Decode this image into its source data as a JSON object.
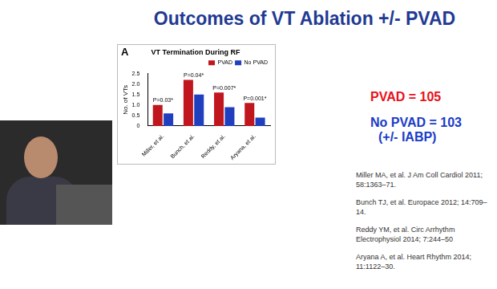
{
  "title": "Outcomes of VT Ablation +/- PVAD",
  "panel_label": "A",
  "chart_data": {
    "type": "bar",
    "title": "VT Termination During RF",
    "y_label": "No. of VTs",
    "categories": [
      "Miller, et al.",
      "Bunch, et al.",
      "Reddy, et al.",
      "Aryana, et al."
    ],
    "series": [
      {
        "name": "PVAD",
        "color": "#c0171e",
        "values": [
          1.0,
          2.2,
          1.6,
          1.1
        ]
      },
      {
        "name": "No PVAD",
        "color": "#1f3fbf",
        "values": [
          0.6,
          1.5,
          0.9,
          0.4
        ]
      }
    ],
    "ylim": [
      0,
      2.5
    ],
    "yticks": [
      0,
      0.5,
      {
        "value": 1,
        "label": "1.0"
      },
      1.5,
      {
        "value": 2,
        "label": "2.0"
      },
      2.5
    ],
    "legend": "upper right",
    "annotations": [
      {
        "category": "Miller, et al.",
        "text": "P=0.03*"
      },
      {
        "category": "Bunch, et al.",
        "text": "P=0.04*"
      },
      {
        "category": "Reddy, et al.",
        "text": "P=0.007*"
      },
      {
        "category": "Aryana, et al.",
        "text": "P=0.001*"
      }
    ]
  },
  "cohorts": [
    {
      "text": "PVAD = 105",
      "color": "#e8101a"
    },
    {
      "text": "No PVAD = 103",
      "color": "#1a3cc8"
    },
    {
      "text": "(+/- IABP)",
      "color": "#1a3cc8"
    }
  ],
  "references": [
    "Miller MA, et al. J Am Coll Cardiol 2011; 58:1363–71.",
    "Bunch TJ, et al. Europace 2012; 14:709–14.",
    "Reddy YM, et al. Circ Arrhythm Electrophysiol 2014; 7:244–50",
    "Aryana A, et al. Heart Rhythm 2014; 11:1122–30."
  ]
}
